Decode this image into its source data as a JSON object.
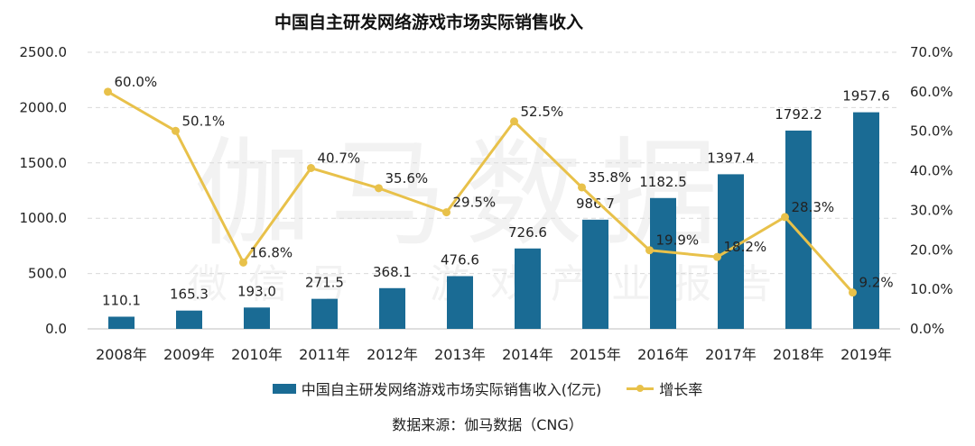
{
  "chart_data": {
    "type": "bar+line",
    "title": "中国自主研发网络游戏市场实际销售收入",
    "categories": [
      "2008年",
      "2009年",
      "2010年",
      "2011年",
      "2012年",
      "2013年",
      "2014年",
      "2015年",
      "2016年",
      "2017年",
      "2018年",
      "2019年"
    ],
    "series": [
      {
        "name": "中国自主研发网络游戏市场实际销售收入(亿元)",
        "type": "bar",
        "axis": "left",
        "color": "#1a6b94",
        "values": [
          110.1,
          165.3,
          193.0,
          271.5,
          368.1,
          476.6,
          726.6,
          986.7,
          1182.5,
          1397.4,
          1792.2,
          1957.6
        ],
        "labels": [
          "110.1",
          "165.3",
          "193.0",
          "271.5",
          "368.1",
          "476.6",
          "726.6",
          "986.7",
          "1182.5",
          "1397.4",
          "1792.2",
          "1957.6"
        ]
      },
      {
        "name": "增长率",
        "type": "line",
        "axis": "right",
        "color": "#e8c14a",
        "values": [
          60.0,
          50.1,
          16.8,
          40.7,
          35.6,
          29.5,
          52.5,
          35.8,
          19.9,
          18.2,
          28.3,
          9.2
        ],
        "labels": [
          "60.0%",
          "50.1%",
          "16.8%",
          "40.7%",
          "35.6%",
          "29.5%",
          "52.5%",
          "35.8%",
          "19.9%",
          "18.2%",
          "28.3%",
          "9.2%"
        ]
      }
    ],
    "y_left": {
      "lim": [
        0,
        2500
      ],
      "ticks": [
        "0.0",
        "500.0",
        "1000.0",
        "1500.0",
        "2000.0",
        "2500.0"
      ]
    },
    "y_right": {
      "lim": [
        0,
        70
      ],
      "ticks": [
        "0.0%",
        "10.0%",
        "20.0%",
        "30.0%",
        "40.0%",
        "50.0%",
        "60.0%",
        "70.0%"
      ]
    },
    "grid": true,
    "legend_position": "bottom"
  },
  "source": "数据来源：伽马数据（CNG）",
  "watermark": "伽马数据 微信号 游戏产业报告"
}
